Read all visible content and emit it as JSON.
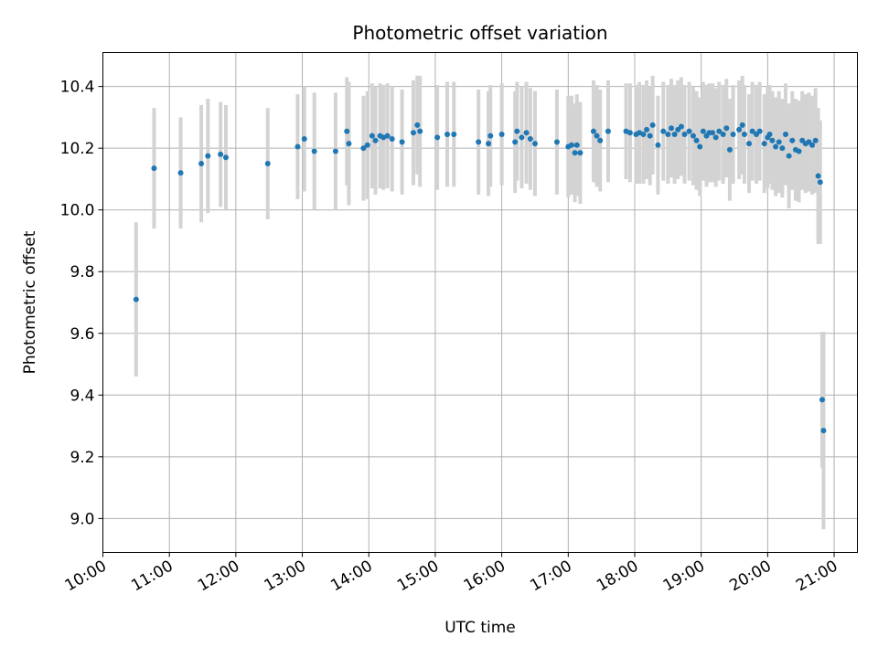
{
  "chart_data": {
    "type": "scatter",
    "title": "Photometric offset variation",
    "xlabel": "UTC time",
    "ylabel": "Photometric offset",
    "x_unit": "hours UTC",
    "xlim": [
      10.0,
      21.35
    ],
    "ylim": [
      8.89,
      10.51
    ],
    "x_ticks": [
      10,
      11,
      12,
      13,
      14,
      15,
      16,
      17,
      18,
      19,
      20,
      21
    ],
    "x_tick_labels": [
      "10:00",
      "11:00",
      "12:00",
      "13:00",
      "14:00",
      "15:00",
      "16:00",
      "17:00",
      "18:00",
      "19:00",
      "20:00",
      "21:00"
    ],
    "y_ticks": [
      9.0,
      9.2,
      9.4,
      9.6,
      9.8,
      10.0,
      10.2,
      10.4
    ],
    "y_tick_labels": [
      "9.0",
      "9.2",
      "9.4",
      "9.6",
      "9.8",
      "10.0",
      "10.2",
      "10.4"
    ],
    "grid": true,
    "colors": {
      "point": "#1f77b4",
      "errorbar": "#d3d3d3",
      "grid": "#b0b0b0"
    },
    "series": [
      {
        "marker": "point",
        "x": [
          10.5,
          10.77,
          11.17,
          11.48,
          11.58,
          11.77,
          11.85,
          12.48,
          12.93,
          13.03,
          13.18,
          13.5,
          13.67,
          13.7,
          13.92,
          13.98,
          14.05,
          14.1,
          14.17,
          14.22,
          14.28,
          14.35,
          14.5,
          14.67,
          14.73,
          14.77,
          15.03,
          15.18,
          15.28,
          15.65,
          15.8,
          15.83,
          16.0,
          16.2,
          16.23,
          16.3,
          16.37,
          16.43,
          16.5,
          16.83,
          17.0,
          17.05,
          17.1,
          17.13,
          17.18,
          17.38,
          17.43,
          17.48,
          17.6,
          17.87,
          17.93,
          18.02,
          18.07,
          18.13,
          18.18,
          18.23,
          18.27,
          18.35,
          18.43,
          18.5,
          18.55,
          18.6,
          18.65,
          18.7,
          18.75,
          18.82,
          18.88,
          18.93,
          18.98,
          19.03,
          19.08,
          19.12,
          19.17,
          19.22,
          19.27,
          19.33,
          19.38,
          19.43,
          19.48,
          19.57,
          19.62,
          19.65,
          19.72,
          19.77,
          19.83,
          19.88,
          19.95,
          20.0,
          20.03,
          20.07,
          20.12,
          20.17,
          20.22,
          20.27,
          20.32,
          20.37,
          20.42,
          20.47,
          20.52,
          20.57,
          20.62,
          20.67,
          20.72,
          20.76,
          20.79,
          20.82,
          20.84
        ],
        "y": [
          9.71,
          10.135,
          10.12,
          10.15,
          10.175,
          10.18,
          10.17,
          10.15,
          10.205,
          10.23,
          10.19,
          10.19,
          10.255,
          10.215,
          10.2,
          10.21,
          10.24,
          10.225,
          10.24,
          10.235,
          10.24,
          10.23,
          10.22,
          10.25,
          10.275,
          10.255,
          10.235,
          10.245,
          10.245,
          10.22,
          10.215,
          10.24,
          10.245,
          10.22,
          10.255,
          10.235,
          10.25,
          10.23,
          10.215,
          10.22,
          10.205,
          10.21,
          10.185,
          10.21,
          10.185,
          10.255,
          10.24,
          10.225,
          10.255,
          10.255,
          10.25,
          10.245,
          10.25,
          10.245,
          10.26,
          10.24,
          10.275,
          10.21,
          10.255,
          10.245,
          10.265,
          10.245,
          10.26,
          10.27,
          10.245,
          10.255,
          10.24,
          10.225,
          10.205,
          10.255,
          10.24,
          10.25,
          10.25,
          10.235,
          10.255,
          10.245,
          10.265,
          10.195,
          10.245,
          10.26,
          10.275,
          10.245,
          10.215,
          10.255,
          10.245,
          10.255,
          10.215,
          10.235,
          10.245,
          10.225,
          10.205,
          10.22,
          10.2,
          10.245,
          10.175,
          10.225,
          10.195,
          10.19,
          10.225,
          10.215,
          10.22,
          10.21,
          10.225,
          10.11,
          10.09,
          9.385,
          9.285
        ],
        "yerr": [
          0.25,
          0.195,
          0.18,
          0.19,
          0.185,
          0.17,
          0.17,
          0.18,
          0.17,
          0.17,
          0.19,
          0.19,
          0.175,
          0.2,
          0.17,
          0.175,
          0.17,
          0.175,
          0.17,
          0.17,
          0.17,
          0.17,
          0.17,
          0.17,
          0.16,
          0.18,
          0.17,
          0.17,
          0.17,
          0.17,
          0.17,
          0.165,
          0.165,
          0.165,
          0.16,
          0.165,
          0.165,
          0.165,
          0.17,
          0.17,
          0.165,
          0.16,
          0.16,
          0.165,
          0.165,
          0.165,
          0.165,
          0.165,
          0.165,
          0.155,
          0.16,
          0.16,
          0.165,
          0.16,
          0.16,
          0.16,
          0.16,
          0.16,
          0.16,
          0.16,
          0.16,
          0.16,
          0.16,
          0.16,
          0.16,
          0.16,
          0.16,
          0.16,
          0.16,
          0.16,
          0.165,
          0.16,
          0.16,
          0.16,
          0.16,
          0.16,
          0.16,
          0.165,
          0.16,
          0.16,
          0.16,
          0.16,
          0.16,
          0.16,
          0.16,
          0.16,
          0.16,
          0.165,
          0.16,
          0.16,
          0.16,
          0.165,
          0.16,
          0.165,
          0.17,
          0.16,
          0.165,
          0.165,
          0.16,
          0.16,
          0.16,
          0.16,
          0.17,
          0.22,
          0.2,
          0.22,
          0.32
        ]
      }
    ]
  }
}
